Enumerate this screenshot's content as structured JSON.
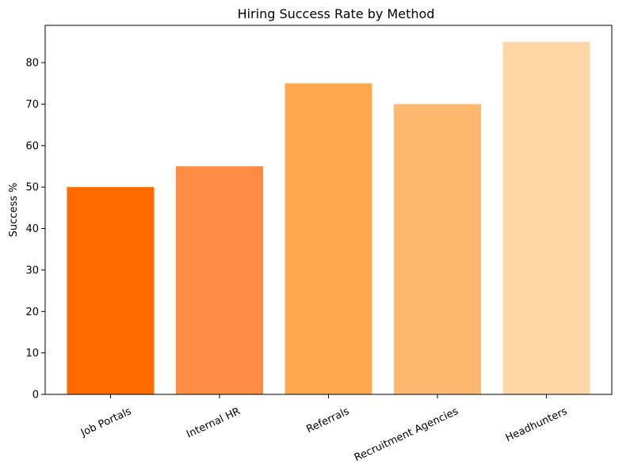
{
  "chart_data": {
    "type": "bar",
    "title": "Hiring Success Rate by Method",
    "xlabel": "",
    "ylabel": "Success %",
    "categories": [
      "Job Portals",
      "Internal HR",
      "Referrals",
      "Recruitment Agencies",
      "Headhunters"
    ],
    "values": [
      50,
      55,
      75,
      70,
      85
    ],
    "colors": [
      "#ff6a00",
      "#ff8c42",
      "#ffa84d",
      "#ffb870",
      "#ffd6a5"
    ],
    "ylim": [
      0,
      89
    ],
    "yticks": [
      0,
      10,
      20,
      30,
      40,
      50,
      60,
      70,
      80
    ],
    "grid": false,
    "legend": "none"
  }
}
